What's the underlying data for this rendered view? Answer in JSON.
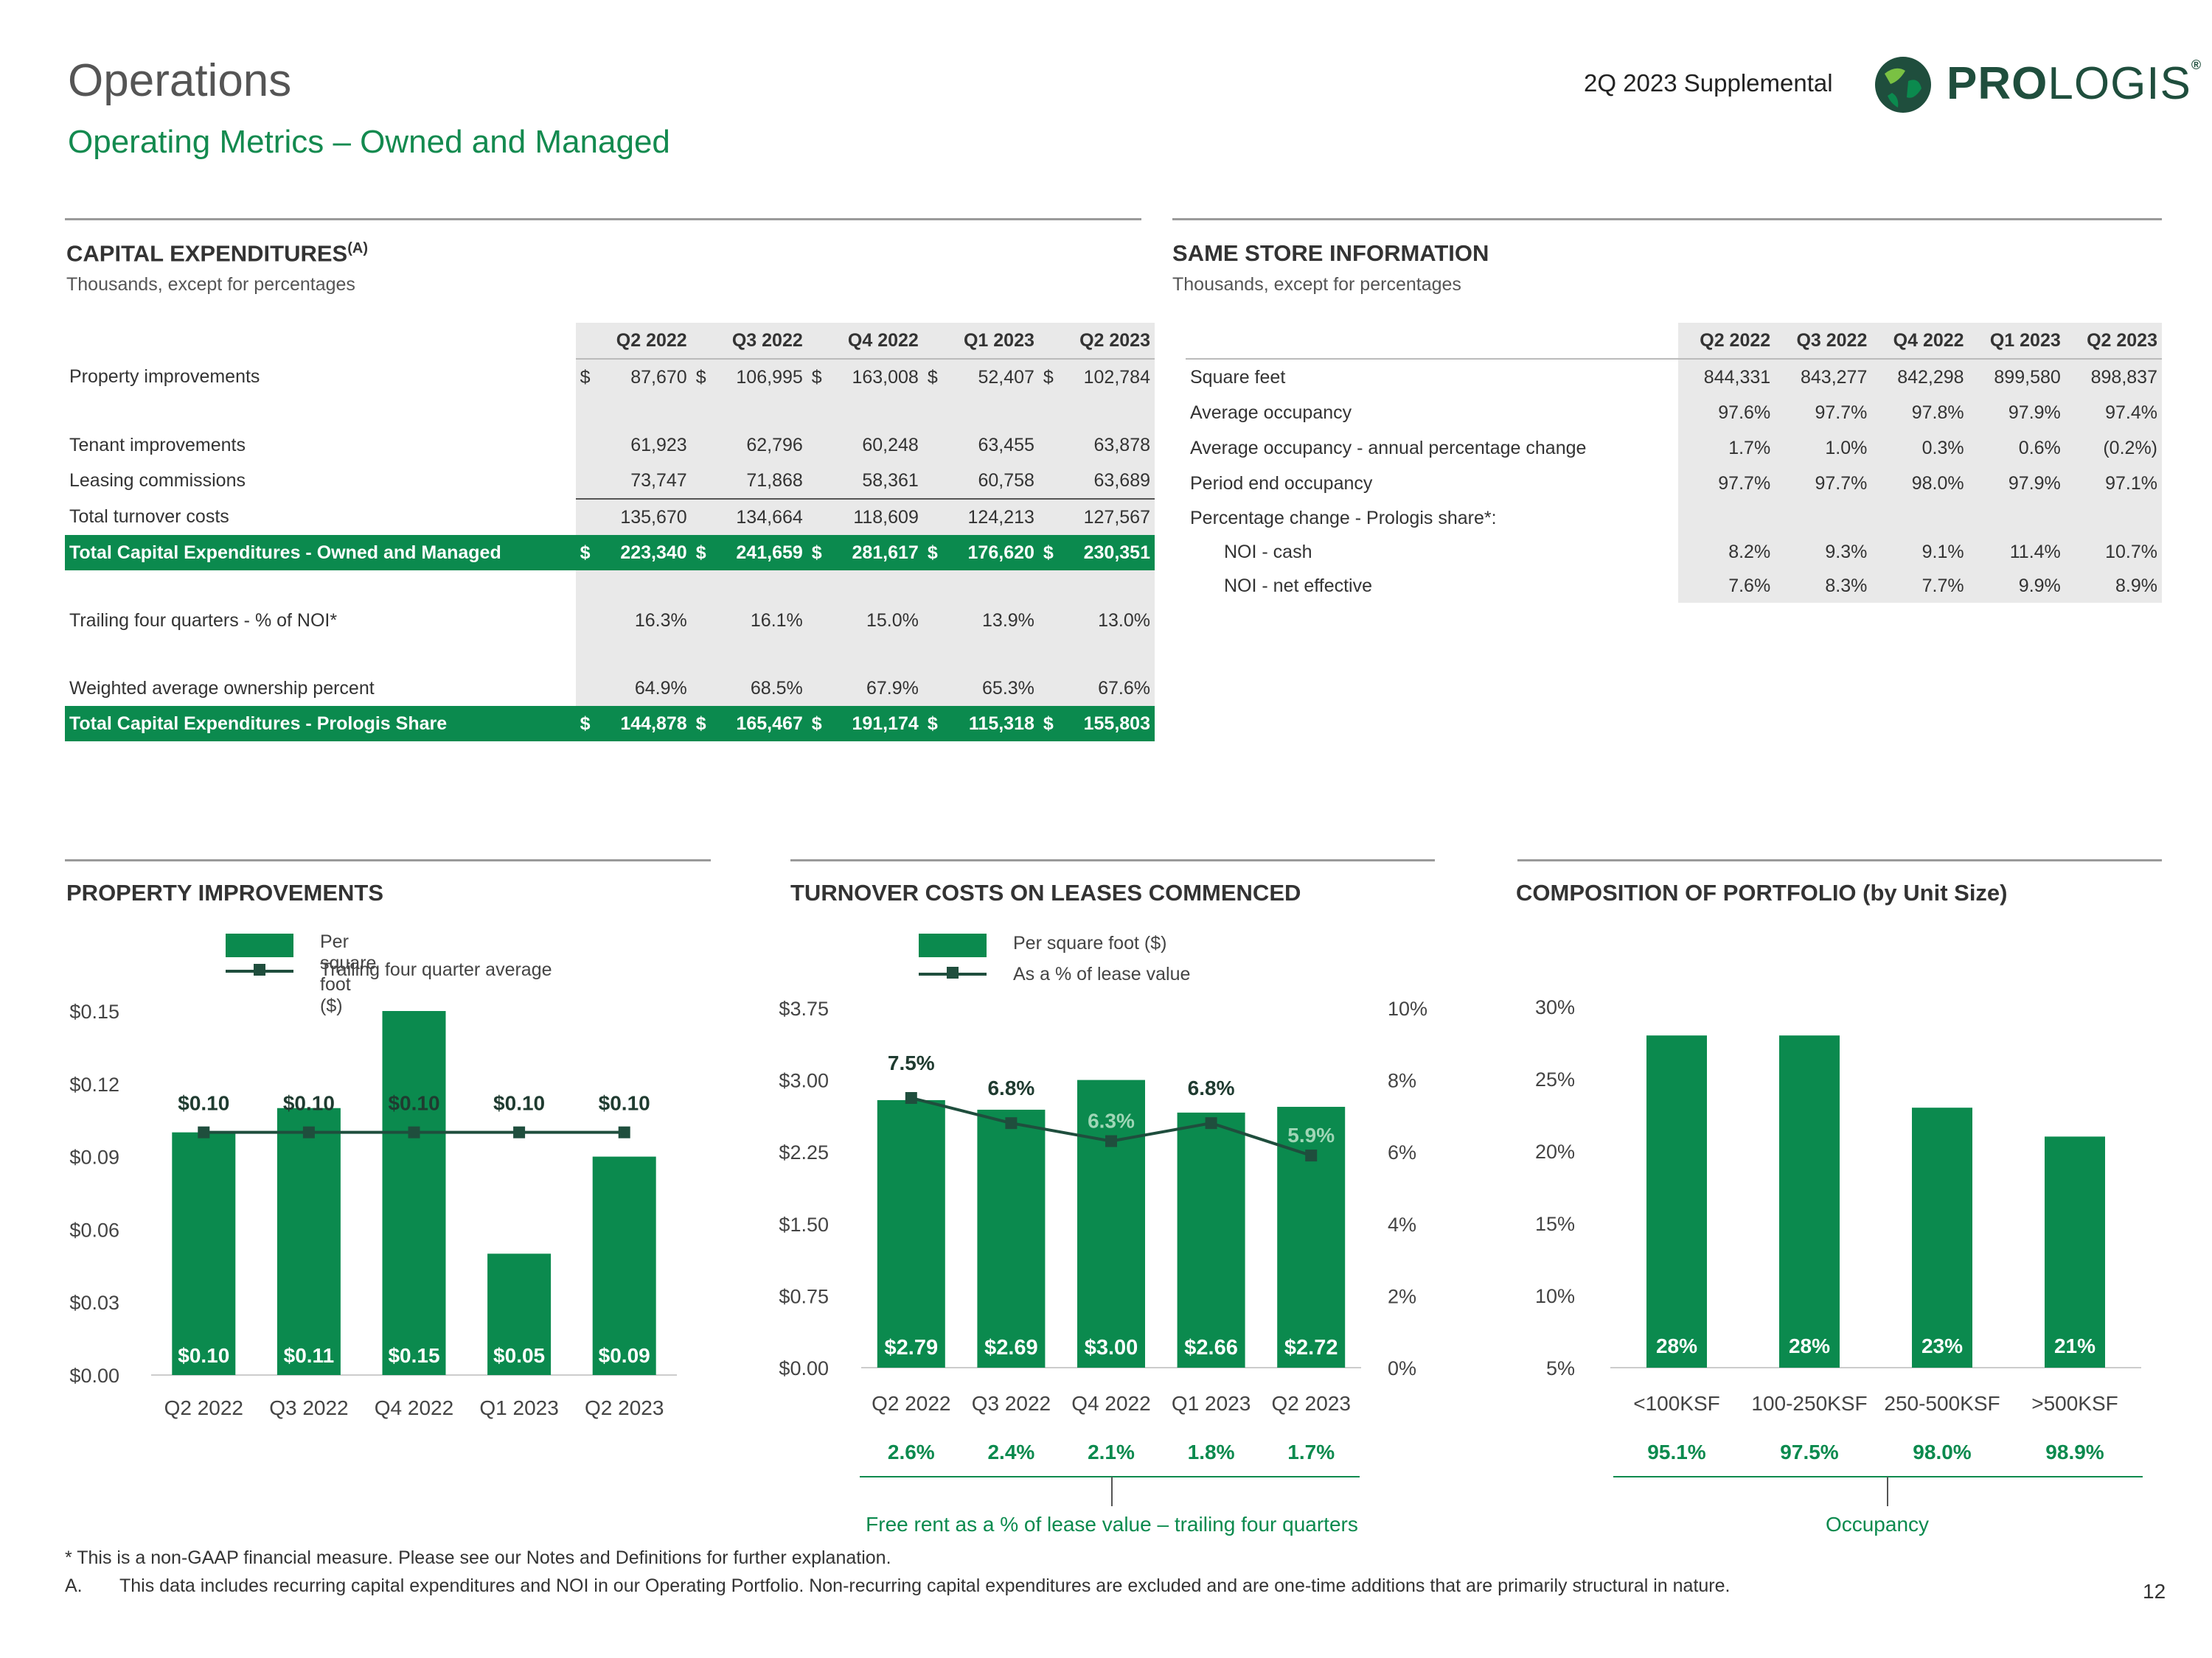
{
  "header": {
    "title": "Operations",
    "subtitle": "Operating Metrics – Owned and Managed",
    "supplemental": "2Q 2023 Supplemental",
    "logo_pro": "PRO",
    "logo_logis": "LOGIS",
    "logo_reg": "®"
  },
  "capex": {
    "title": "CAPITAL EXPENDITURES",
    "title_sup": "(A)",
    "note": "Thousands, except for percentages",
    "headers": [
      "Q2 2022",
      "Q3 2022",
      "Q4 2022",
      "Q1 2023",
      "Q2 2023"
    ],
    "rows": [
      {
        "label": "Property improvements",
        "dollar": true,
        "values": [
          "87,670",
          "106,995",
          "163,008",
          "52,407",
          "102,784"
        ]
      },
      {
        "label": "Tenant improvements",
        "dollar": false,
        "values": [
          "61,923",
          "62,796",
          "60,248",
          "63,455",
          "63,878"
        ]
      },
      {
        "label": "Leasing commissions",
        "dollar": false,
        "values": [
          "73,747",
          "71,868",
          "58,361",
          "60,758",
          "63,689"
        ]
      },
      {
        "label": "Total turnover costs",
        "dollar": false,
        "values": [
          "135,670",
          "134,664",
          "118,609",
          "124,213",
          "127,567"
        ]
      },
      {
        "label": "Total Capital Expenditures - Owned and Managed",
        "dollar": true,
        "values": [
          "223,340",
          "241,659",
          "281,617",
          "176,620",
          "230,351"
        ]
      },
      {
        "label": "Trailing four quarters - % of NOI*",
        "dollar": false,
        "values": [
          "16.3%",
          "16.1%",
          "15.0%",
          "13.9%",
          "13.0%"
        ]
      },
      {
        "label": "Weighted average ownership percent",
        "dollar": false,
        "values": [
          "64.9%",
          "68.5%",
          "67.9%",
          "65.3%",
          "67.6%"
        ]
      },
      {
        "label": "Total Capital Expenditures - Prologis Share",
        "dollar": true,
        "values": [
          "144,878",
          "165,467",
          "191,174",
          "115,318",
          "155,803"
        ]
      }
    ],
    "dollar_sign": "$"
  },
  "same_store": {
    "title": "SAME STORE INFORMATION",
    "note": "Thousands, except for percentages",
    "headers": [
      "Q2 2022",
      "Q3 2022",
      "Q4 2022",
      "Q1 2023",
      "Q2 2023"
    ],
    "rows": [
      {
        "label": "Square feet",
        "values": [
          "844,331",
          "843,277",
          "842,298",
          "899,580",
          "898,837"
        ]
      },
      {
        "label": "Average occupancy",
        "values": [
          "97.6%",
          "97.7%",
          "97.8%",
          "97.9%",
          "97.4%"
        ]
      },
      {
        "label": "Average occupancy - annual percentage change",
        "values": [
          "1.7%",
          "1.0%",
          "0.3%",
          "0.6%",
          "(0.2%)"
        ]
      },
      {
        "label": "Period end occupancy",
        "values": [
          "97.7%",
          "97.7%",
          "98.0%",
          "97.9%",
          "97.1%"
        ]
      },
      {
        "label": "Percentage change - Prologis share*:",
        "values": [
          "",
          "",
          "",
          "",
          ""
        ]
      },
      {
        "label": "NOI - cash",
        "values": [
          "8.2%",
          "9.3%",
          "9.1%",
          "11.4%",
          "10.7%"
        ]
      },
      {
        "label": "NOI - net effective",
        "values": [
          "7.6%",
          "8.3%",
          "7.7%",
          "9.9%",
          "8.9%"
        ]
      }
    ]
  },
  "chart_data": [
    {
      "type": "bar",
      "title": "PROPERTY IMPROVEMENTS",
      "categories": [
        "Q2 2022",
        "Q3 2022",
        "Q4 2022",
        "Q1 2023",
        "Q2 2023"
      ],
      "series": [
        {
          "name": "Per square foot ($)",
          "kind": "bar",
          "values": [
            0.1,
            0.11,
            0.15,
            0.05,
            0.09
          ],
          "labels": [
            "$0.10",
            "$0.11",
            "$0.15",
            "$0.05",
            "$0.09"
          ]
        },
        {
          "name": "Trailing four quarter average",
          "kind": "line",
          "values": [
            0.1,
            0.1,
            0.1,
            0.1,
            0.1
          ],
          "labels": [
            "$0.10",
            "$0.10",
            "$0.10",
            "$0.10",
            "$0.10"
          ]
        }
      ],
      "ylim": [
        0,
        0.15
      ],
      "yticks": [
        "$0.00",
        "$0.03",
        "$0.06",
        "$0.09",
        "$0.12",
        "$0.15"
      ],
      "color": "#0b8a4e",
      "line_color": "#1f4e3d"
    },
    {
      "type": "bar",
      "title": "TURNOVER COSTS ON LEASES COMMENCED",
      "categories": [
        "Q2 2022",
        "Q3 2022",
        "Q4 2022",
        "Q1 2023",
        "Q2 2023"
      ],
      "series": [
        {
          "name": "Per square foot ($)",
          "kind": "bar",
          "values": [
            2.79,
            2.69,
            3.0,
            2.66,
            2.72
          ],
          "labels": [
            "$2.79",
            "$2.69",
            "$3.00",
            "$2.66",
            "$2.72"
          ]
        },
        {
          "name": "As a % of lease value",
          "kind": "line",
          "axis": "right",
          "values": [
            7.5,
            6.8,
            6.3,
            6.8,
            5.9
          ],
          "labels": [
            "7.5%",
            "6.8%",
            "6.3%",
            "6.8%",
            "5.9%"
          ]
        }
      ],
      "ylim": [
        0,
        3.75
      ],
      "yticks": [
        "$0.00",
        "$0.75",
        "$1.50",
        "$2.25",
        "$3.00",
        "$3.75"
      ],
      "y2lim": [
        0,
        10
      ],
      "y2ticks": [
        "0%",
        "2%",
        "4%",
        "6%",
        "8%",
        "10%"
      ],
      "footer_values": [
        "2.6%",
        "2.4%",
        "2.1%",
        "1.8%",
        "1.7%"
      ],
      "footer_label": "Free rent as a % of lease value – trailing four quarters",
      "color": "#0b8a4e",
      "line_color": "#1f4e3d"
    },
    {
      "type": "bar",
      "title": "COMPOSITION OF PORTFOLIO (by Unit Size)",
      "categories": [
        "<100KSF",
        "100-250KSF",
        "250-500KSF",
        ">500KSF"
      ],
      "series": [
        {
          "name": "Share of portfolio",
          "kind": "bar",
          "values": [
            28,
            28,
            23,
            21
          ],
          "labels": [
            "28%",
            "28%",
            "23%",
            "21%"
          ]
        }
      ],
      "ylim": [
        5,
        30
      ],
      "yticks": [
        "5%",
        "10%",
        "15%",
        "20%",
        "25%",
        "30%"
      ],
      "footer_values": [
        "95.1%",
        "97.5%",
        "98.0%",
        "98.9%"
      ],
      "footer_label": "Occupancy",
      "color": "#0b8a4e"
    }
  ],
  "footnotes": {
    "star": "* This is a non-GAAP financial measure. Please see our Notes and Definitions for further explanation.",
    "a_marker": "A.",
    "a_text": "This data includes recurring capital expenditures and NOI in our Operating Portfolio. Non-recurring capital expenditures are excluded and are one-time additions that are primarily structural in nature.",
    "page": "12"
  }
}
